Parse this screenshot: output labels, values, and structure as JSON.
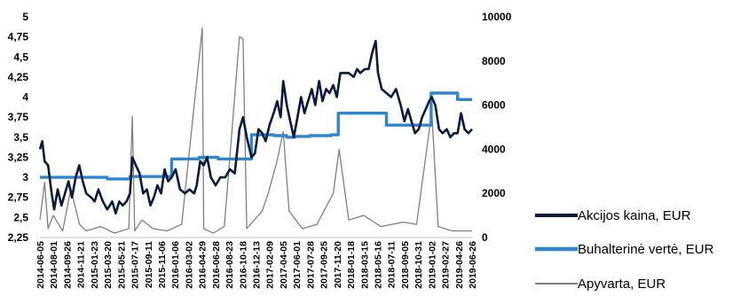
{
  "chart_data": {
    "type": "line",
    "left_axis": {
      "min": 2.25,
      "max": 5,
      "ticks": [
        "2,25",
        "2,5",
        "2,75",
        "3",
        "3,25",
        "3,5",
        "3,75",
        "4",
        "4,25",
        "4,5",
        "4,75",
        "5"
      ]
    },
    "right_axis": {
      "min": 0,
      "max": 10000,
      "ticks": [
        "0",
        "2000",
        "4000",
        "6000",
        "8000",
        "10000"
      ]
    },
    "x_range": [
      "2014-06-05",
      "2019-06-26"
    ],
    "x_tick_labels": [
      "2014-06-05",
      "2014-08-01",
      "2014-09-26",
      "2014-11-21",
      "2015-01-23",
      "2015-03-20",
      "2015-05-21",
      "2015-07-17",
      "2015-09-11",
      "2015-11-06",
      "2016-01-06",
      "2016-03-02",
      "2016-04-29",
      "2016-06-28",
      "2016-08-23",
      "2016-10-18",
      "2016-12-13",
      "2017-02-09",
      "2017-04-05",
      "2017-06-01",
      "2017-07-28",
      "2017-09-25",
      "2017-11-20",
      "2018-01-18",
      "2018-03-15",
      "2018-05-16",
      "2018-07-11",
      "2018-09-05",
      "2018-10-31",
      "2019-01-02",
      "2019-02-27",
      "2019-04-26",
      "2019-06-26"
    ],
    "grid": false,
    "legend_position": "right",
    "series": [
      {
        "name": "Akcijos kaina, EUR",
        "axis": "left",
        "color": "#0a1a3f",
        "points": [
          [
            "2014-06-05",
            3.35
          ],
          [
            "2014-06-15",
            3.45
          ],
          [
            "2014-06-25",
            3.2
          ],
          [
            "2014-07-10",
            3.15
          ],
          [
            "2014-07-25",
            2.8
          ],
          [
            "2014-08-05",
            2.6
          ],
          [
            "2014-08-20",
            2.85
          ],
          [
            "2014-09-05",
            2.65
          ],
          [
            "2014-09-20",
            2.8
          ],
          [
            "2014-10-05",
            2.95
          ],
          [
            "2014-10-20",
            2.75
          ],
          [
            "2014-11-05",
            3.0
          ],
          [
            "2014-11-20",
            3.15
          ],
          [
            "2014-12-05",
            2.95
          ],
          [
            "2014-12-20",
            2.8
          ],
          [
            "2015-01-10",
            2.75
          ],
          [
            "2015-01-25",
            2.7
          ],
          [
            "2015-02-10",
            2.85
          ],
          [
            "2015-03-01",
            2.7
          ],
          [
            "2015-03-20",
            2.6
          ],
          [
            "2015-04-10",
            2.7
          ],
          [
            "2015-04-25",
            2.55
          ],
          [
            "2015-05-10",
            2.7
          ],
          [
            "2015-05-25",
            2.65
          ],
          [
            "2015-06-10",
            2.7
          ],
          [
            "2015-06-25",
            2.8
          ],
          [
            "2015-07-05",
            3.25
          ],
          [
            "2015-07-20",
            3.15
          ],
          [
            "2015-08-05",
            3.05
          ],
          [
            "2015-08-20",
            2.8
          ],
          [
            "2015-09-05",
            2.85
          ],
          [
            "2015-09-20",
            2.65
          ],
          [
            "2015-10-05",
            2.75
          ],
          [
            "2015-10-20",
            2.9
          ],
          [
            "2015-11-05",
            2.8
          ],
          [
            "2015-11-20",
            3.1
          ],
          [
            "2015-12-05",
            2.95
          ],
          [
            "2015-12-20",
            3.0
          ],
          [
            "2016-01-06",
            3.1
          ],
          [
            "2016-01-25",
            2.85
          ],
          [
            "2016-02-15",
            2.8
          ],
          [
            "2016-03-05",
            2.85
          ],
          [
            "2016-03-25",
            2.8
          ],
          [
            "2016-04-05",
            2.9
          ],
          [
            "2016-04-20",
            3.2
          ],
          [
            "2016-05-05",
            3.15
          ],
          [
            "2016-05-20",
            3.25
          ],
          [
            "2016-06-05",
            3.0
          ],
          [
            "2016-06-25",
            2.9
          ],
          [
            "2016-07-15",
            3.0
          ],
          [
            "2016-08-05",
            3.0
          ],
          [
            "2016-08-25",
            3.1
          ],
          [
            "2016-09-15",
            3.05
          ],
          [
            "2016-10-05",
            3.6
          ],
          [
            "2016-10-20",
            3.75
          ],
          [
            "2016-11-05",
            3.5
          ],
          [
            "2016-11-25",
            3.25
          ],
          [
            "2016-12-10",
            3.3
          ],
          [
            "2016-12-25",
            3.6
          ],
          [
            "2017-01-10",
            3.55
          ],
          [
            "2017-01-25",
            3.45
          ],
          [
            "2017-02-10",
            3.65
          ],
          [
            "2017-02-28",
            3.8
          ],
          [
            "2017-03-15",
            3.95
          ],
          [
            "2017-03-30",
            3.75
          ],
          [
            "2017-04-10",
            4.2
          ],
          [
            "2017-04-25",
            3.9
          ],
          [
            "2017-05-10",
            3.7
          ],
          [
            "2017-05-25",
            3.5
          ],
          [
            "2017-06-10",
            3.75
          ],
          [
            "2017-06-25",
            4.0
          ],
          [
            "2017-07-10",
            3.8
          ],
          [
            "2017-07-25",
            3.95
          ],
          [
            "2017-08-10",
            4.1
          ],
          [
            "2017-08-25",
            3.9
          ],
          [
            "2017-09-10",
            4.2
          ],
          [
            "2017-09-25",
            3.95
          ],
          [
            "2017-10-10",
            4.1
          ],
          [
            "2017-10-25",
            4.05
          ],
          [
            "2017-11-10",
            4.15
          ],
          [
            "2017-11-25",
            4.0
          ],
          [
            "2017-12-10",
            4.3
          ],
          [
            "2017-12-25",
            4.3
          ],
          [
            "2018-01-15",
            4.3
          ],
          [
            "2018-02-05",
            4.25
          ],
          [
            "2018-02-20",
            4.35
          ],
          [
            "2018-03-05",
            4.3
          ],
          [
            "2018-03-25",
            4.35
          ],
          [
            "2018-04-10",
            4.35
          ],
          [
            "2018-04-25",
            4.55
          ],
          [
            "2018-05-10",
            4.7
          ],
          [
            "2018-05-20",
            4.3
          ],
          [
            "2018-06-05",
            4.1
          ],
          [
            "2018-06-25",
            4.05
          ],
          [
            "2018-07-15",
            4.0
          ],
          [
            "2018-08-05",
            4.1
          ],
          [
            "2018-08-25",
            3.9
          ],
          [
            "2018-09-10",
            3.7
          ],
          [
            "2018-09-25",
            3.85
          ],
          [
            "2018-10-10",
            3.7
          ],
          [
            "2018-10-25",
            3.55
          ],
          [
            "2018-11-10",
            3.6
          ],
          [
            "2018-11-25",
            3.75
          ],
          [
            "2018-12-10",
            3.85
          ],
          [
            "2018-12-25",
            3.95
          ],
          [
            "2019-01-05",
            4.0
          ],
          [
            "2019-01-20",
            3.9
          ],
          [
            "2019-02-05",
            3.6
          ],
          [
            "2019-02-20",
            3.55
          ],
          [
            "2019-03-10",
            3.6
          ],
          [
            "2019-03-25",
            3.5
          ],
          [
            "2019-04-10",
            3.55
          ],
          [
            "2019-04-25",
            3.55
          ],
          [
            "2019-05-10",
            3.8
          ],
          [
            "2019-05-25",
            3.6
          ],
          [
            "2019-06-10",
            3.55
          ],
          [
            "2019-06-26",
            3.6
          ]
        ]
      },
      {
        "name": "Buhalterinė vertė, EUR",
        "axis": "left",
        "color": "#2e86d1",
        "step": true,
        "points": [
          [
            "2014-06-05",
            3.0
          ],
          [
            "2015-01-23",
            3.0
          ],
          [
            "2015-03-20",
            2.98
          ],
          [
            "2015-06-25",
            3.01
          ],
          [
            "2015-12-20",
            3.23
          ],
          [
            "2016-04-15",
            3.25
          ],
          [
            "2016-07-05",
            3.23
          ],
          [
            "2016-11-25",
            3.53
          ],
          [
            "2017-03-01",
            3.52
          ],
          [
            "2017-04-25",
            3.5
          ],
          [
            "2017-06-01",
            3.51
          ],
          [
            "2017-08-01",
            3.52
          ],
          [
            "2017-11-01",
            3.53
          ],
          [
            "2017-12-01",
            3.8
          ],
          [
            "2018-05-01",
            3.8
          ],
          [
            "2018-06-25",
            3.65
          ],
          [
            "2018-09-05",
            3.65
          ],
          [
            "2018-11-20",
            3.65
          ],
          [
            "2019-01-02",
            4.05
          ],
          [
            "2019-04-25",
            3.97
          ],
          [
            "2019-06-26",
            3.97
          ]
        ]
      },
      {
        "name": "Apyvarta, EUR",
        "axis": "right",
        "color": "#808080",
        "points": [
          [
            "2014-06-05",
            800
          ],
          [
            "2014-06-25",
            2500
          ],
          [
            "2014-07-10",
            400
          ],
          [
            "2014-08-01",
            1000
          ],
          [
            "2014-09-10",
            300
          ],
          [
            "2014-10-15",
            2200
          ],
          [
            "2014-11-21",
            600
          ],
          [
            "2014-12-20",
            300
          ],
          [
            "2015-02-20",
            500
          ],
          [
            "2015-04-20",
            200
          ],
          [
            "2015-06-20",
            400
          ],
          [
            "2015-07-05",
            5500
          ],
          [
            "2015-07-15",
            300
          ],
          [
            "2015-08-15",
            800
          ],
          [
            "2015-10-01",
            400
          ],
          [
            "2015-12-01",
            300
          ],
          [
            "2016-02-01",
            600
          ],
          [
            "2016-04-29",
            9500
          ],
          [
            "2016-05-05",
            400
          ],
          [
            "2016-06-15",
            200
          ],
          [
            "2016-08-01",
            500
          ],
          [
            "2016-10-05",
            9100
          ],
          [
            "2016-10-20",
            9000
          ],
          [
            "2016-11-05",
            400
          ],
          [
            "2017-01-10",
            1200
          ],
          [
            "2017-02-05",
            2000
          ],
          [
            "2017-03-15",
            3500
          ],
          [
            "2017-04-10",
            4800
          ],
          [
            "2017-05-05",
            1200
          ],
          [
            "2017-07-01",
            400
          ],
          [
            "2017-09-01",
            600
          ],
          [
            "2017-11-10",
            2000
          ],
          [
            "2017-12-05",
            4000
          ],
          [
            "2018-01-15",
            800
          ],
          [
            "2018-03-20",
            1000
          ],
          [
            "2018-06-01",
            500
          ],
          [
            "2018-09-05",
            700
          ],
          [
            "2018-11-01",
            600
          ],
          [
            "2019-01-05",
            5700
          ],
          [
            "2019-02-01",
            500
          ],
          [
            "2019-04-01",
            300
          ],
          [
            "2019-06-26",
            300
          ]
        ]
      }
    ]
  }
}
